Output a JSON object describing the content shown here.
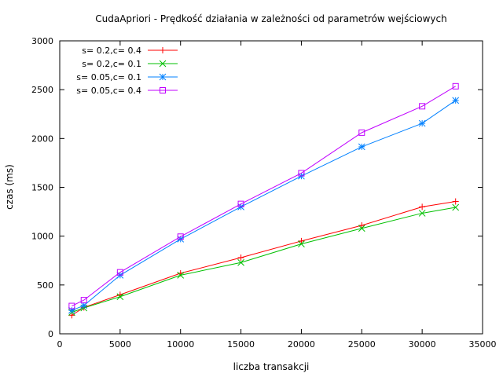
{
  "chart_data": {
    "type": "line",
    "title": "CudaApriori - Prędkość działania w zależności od parametrów wejściowych",
    "xlabel": "liczba transakcji",
    "ylabel": "czas (ms)",
    "xlim": [
      0,
      35000
    ],
    "ylim": [
      0,
      3000
    ],
    "xticks": [
      0,
      5000,
      10000,
      15000,
      20000,
      25000,
      30000,
      35000
    ],
    "yticks": [
      0,
      500,
      1000,
      1500,
      2000,
      2500,
      3000
    ],
    "grid": false,
    "legend_position": "top-left",
    "x": [
      1000,
      2000,
      5000,
      10000,
      15000,
      20000,
      25000,
      30000,
      32768
    ],
    "series": [
      {
        "name": "s= 0.2,c= 0.4",
        "color": "#ff0000",
        "marker": "plus",
        "values": [
          190,
          270,
          400,
          620,
          780,
          950,
          1110,
          1300,
          1355
        ]
      },
      {
        "name": "s= 0.2,c= 0.1",
        "color": "#00c000",
        "marker": "cross",
        "values": [
          220,
          265,
          380,
          600,
          730,
          920,
          1080,
          1235,
          1295
        ]
      },
      {
        "name": "s= 0.05,c= 0.1",
        "color": "#0080ff",
        "marker": "asterisk",
        "values": [
          240,
          290,
          600,
          970,
          1300,
          1615,
          1915,
          2155,
          2390
        ]
      },
      {
        "name": "s= 0.05,c= 0.4",
        "color": "#c000ff",
        "marker": "square",
        "values": [
          285,
          345,
          630,
          995,
          1330,
          1645,
          2060,
          2330,
          2535
        ]
      }
    ]
  }
}
